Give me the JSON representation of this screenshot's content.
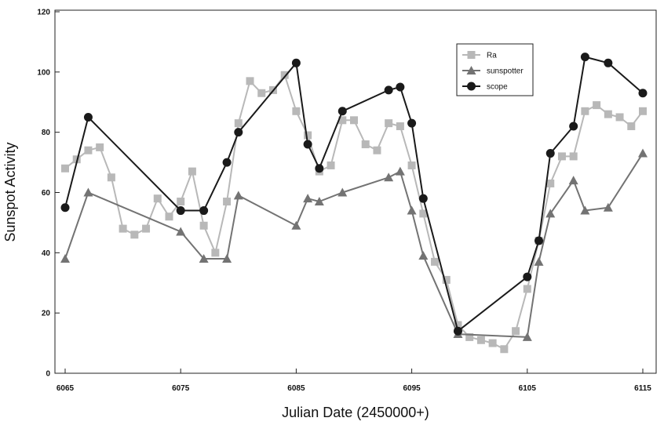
{
  "chart_data": {
    "type": "line",
    "xlabel": "Julian Date (2450000+)",
    "ylabel": "Sunspot Activity",
    "xlim": [
      6065,
      6115
    ],
    "ylim": [
      0,
      120
    ],
    "xticks": [
      6065,
      6075,
      6085,
      6095,
      6105,
      6115
    ],
    "yticks": [
      0,
      20,
      40,
      60,
      80,
      100,
      120
    ],
    "grid": false,
    "legend_position": "top-right",
    "series": [
      {
        "name": "Ra",
        "marker": "square",
        "color": "#b8b8b8",
        "points": [
          [
            6065,
            68
          ],
          [
            6066,
            71
          ],
          [
            6067,
            74
          ],
          [
            6068,
            75
          ],
          [
            6069,
            65
          ],
          [
            6070,
            48
          ],
          [
            6071,
            46
          ],
          [
            6072,
            48
          ],
          [
            6073,
            58
          ],
          [
            6074,
            52
          ],
          [
            6075,
            57
          ],
          [
            6076,
            67
          ],
          [
            6077,
            49
          ],
          [
            6078,
            40
          ],
          [
            6079,
            57
          ],
          [
            6080,
            83
          ],
          [
            6081,
            97
          ],
          [
            6082,
            93
          ],
          [
            6083,
            94
          ],
          [
            6084,
            99
          ],
          [
            6085,
            87
          ],
          [
            6086,
            79
          ],
          [
            6087,
            67
          ],
          [
            6088,
            69
          ],
          [
            6089,
            84
          ],
          [
            6090,
            84
          ],
          [
            6091,
            76
          ],
          [
            6092,
            74
          ],
          [
            6093,
            83
          ],
          [
            6094,
            82
          ],
          [
            6095,
            69
          ],
          [
            6096,
            53
          ],
          [
            6097,
            37
          ],
          [
            6098,
            31
          ],
          [
            6099,
            16
          ],
          [
            6100,
            12
          ],
          [
            6101,
            11
          ],
          [
            6102,
            10
          ],
          [
            6103,
            8
          ],
          [
            6104,
            14
          ],
          [
            6105,
            28
          ],
          [
            6106,
            44
          ],
          [
            6107,
            63
          ],
          [
            6108,
            72
          ],
          [
            6109,
            72
          ],
          [
            6110,
            87
          ],
          [
            6111,
            89
          ],
          [
            6112,
            86
          ],
          [
            6113,
            85
          ],
          [
            6114,
            82
          ],
          [
            6115,
            87
          ]
        ]
      },
      {
        "name": "sunspotter",
        "marker": "triangle",
        "color": "#737373",
        "points": [
          [
            6065,
            38
          ],
          [
            6067,
            60
          ],
          [
            6075,
            47
          ],
          [
            6077,
            38
          ],
          [
            6079,
            38
          ],
          [
            6080,
            59
          ],
          [
            6085,
            49
          ],
          [
            6086,
            58
          ],
          [
            6087,
            57
          ],
          [
            6089,
            60
          ],
          [
            6093,
            65
          ],
          [
            6094,
            67
          ],
          [
            6095,
            54
          ],
          [
            6096,
            39
          ],
          [
            6099,
            13
          ],
          [
            6105,
            12
          ],
          [
            6106,
            37
          ],
          [
            6107,
            53
          ],
          [
            6109,
            64
          ],
          [
            6110,
            54
          ],
          [
            6112,
            55
          ],
          [
            6115,
            73
          ]
        ]
      },
      {
        "name": "scope",
        "marker": "circle",
        "color": "#1a1a1a",
        "points": [
          [
            6065,
            55
          ],
          [
            6067,
            85
          ],
          [
            6075,
            54
          ],
          [
            6077,
            54
          ],
          [
            6079,
            70
          ],
          [
            6080,
            80
          ],
          [
            6085,
            103
          ],
          [
            6086,
            76
          ],
          [
            6087,
            68
          ],
          [
            6089,
            87
          ],
          [
            6093,
            94
          ],
          [
            6094,
            95
          ],
          [
            6095,
            83
          ],
          [
            6096,
            58
          ],
          [
            6099,
            14
          ],
          [
            6105,
            32
          ],
          [
            6106,
            44
          ],
          [
            6107,
            73
          ],
          [
            6109,
            82
          ],
          [
            6110,
            105
          ],
          [
            6112,
            103
          ],
          [
            6115,
            93
          ]
        ]
      }
    ]
  }
}
